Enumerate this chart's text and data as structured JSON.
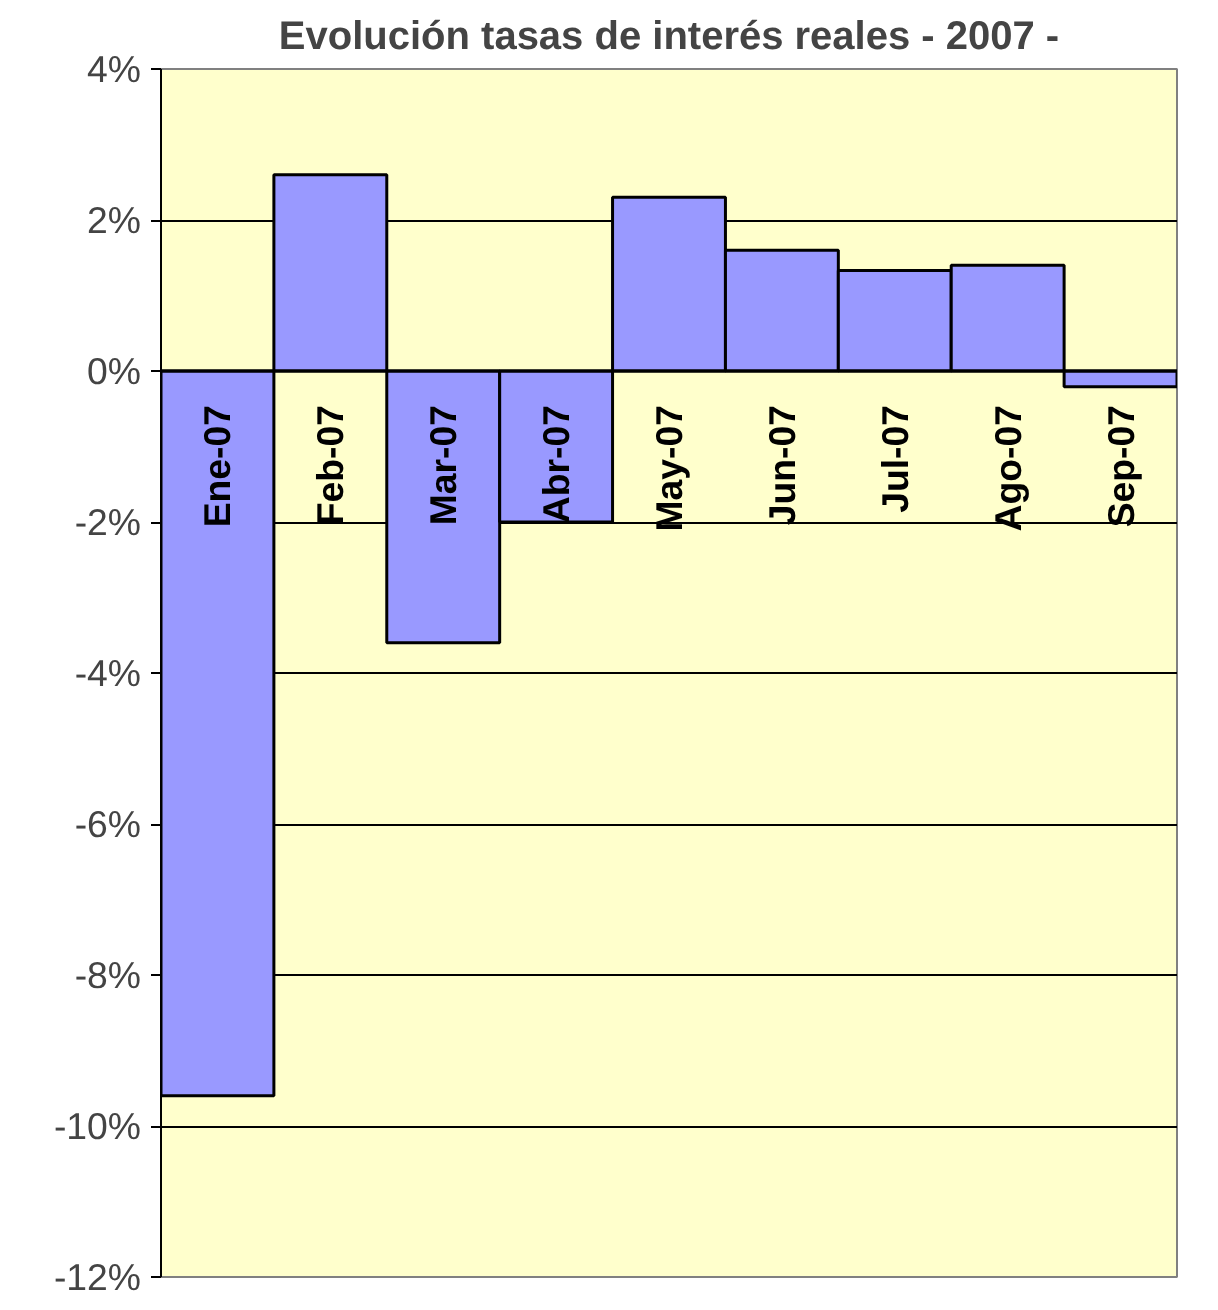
{
  "chart_data": {
    "type": "bar",
    "title": "Evolución tasas de interés reales - 2007 -",
    "categories": [
      "Ene-07",
      "Feb-07",
      "Mar-07",
      "Abr-07",
      "May-07",
      "Jun-07",
      "Jul-07",
      "Ago-07",
      "Sep-07"
    ],
    "values": [
      -9.6,
      2.6,
      -3.6,
      -2.0,
      2.3,
      1.6,
      1.33,
      1.4,
      -0.21
    ],
    "color": "#9999ff",
    "ylim": [
      -12,
      4
    ],
    "yticks": [
      {
        "value": -12,
        "label": "-12%"
      },
      {
        "value": -10,
        "label": "-10%"
      },
      {
        "value": -8,
        "label": "-8%"
      },
      {
        "value": -6,
        "label": "-6%"
      },
      {
        "value": -4,
        "label": "-4%"
      },
      {
        "value": -2,
        "label": "-2%"
      },
      {
        "value": 0,
        "label": "0%"
      },
      {
        "value": 2,
        "label": "2%"
      },
      {
        "value": 4,
        "label": "4%"
      }
    ],
    "grid": "y"
  }
}
